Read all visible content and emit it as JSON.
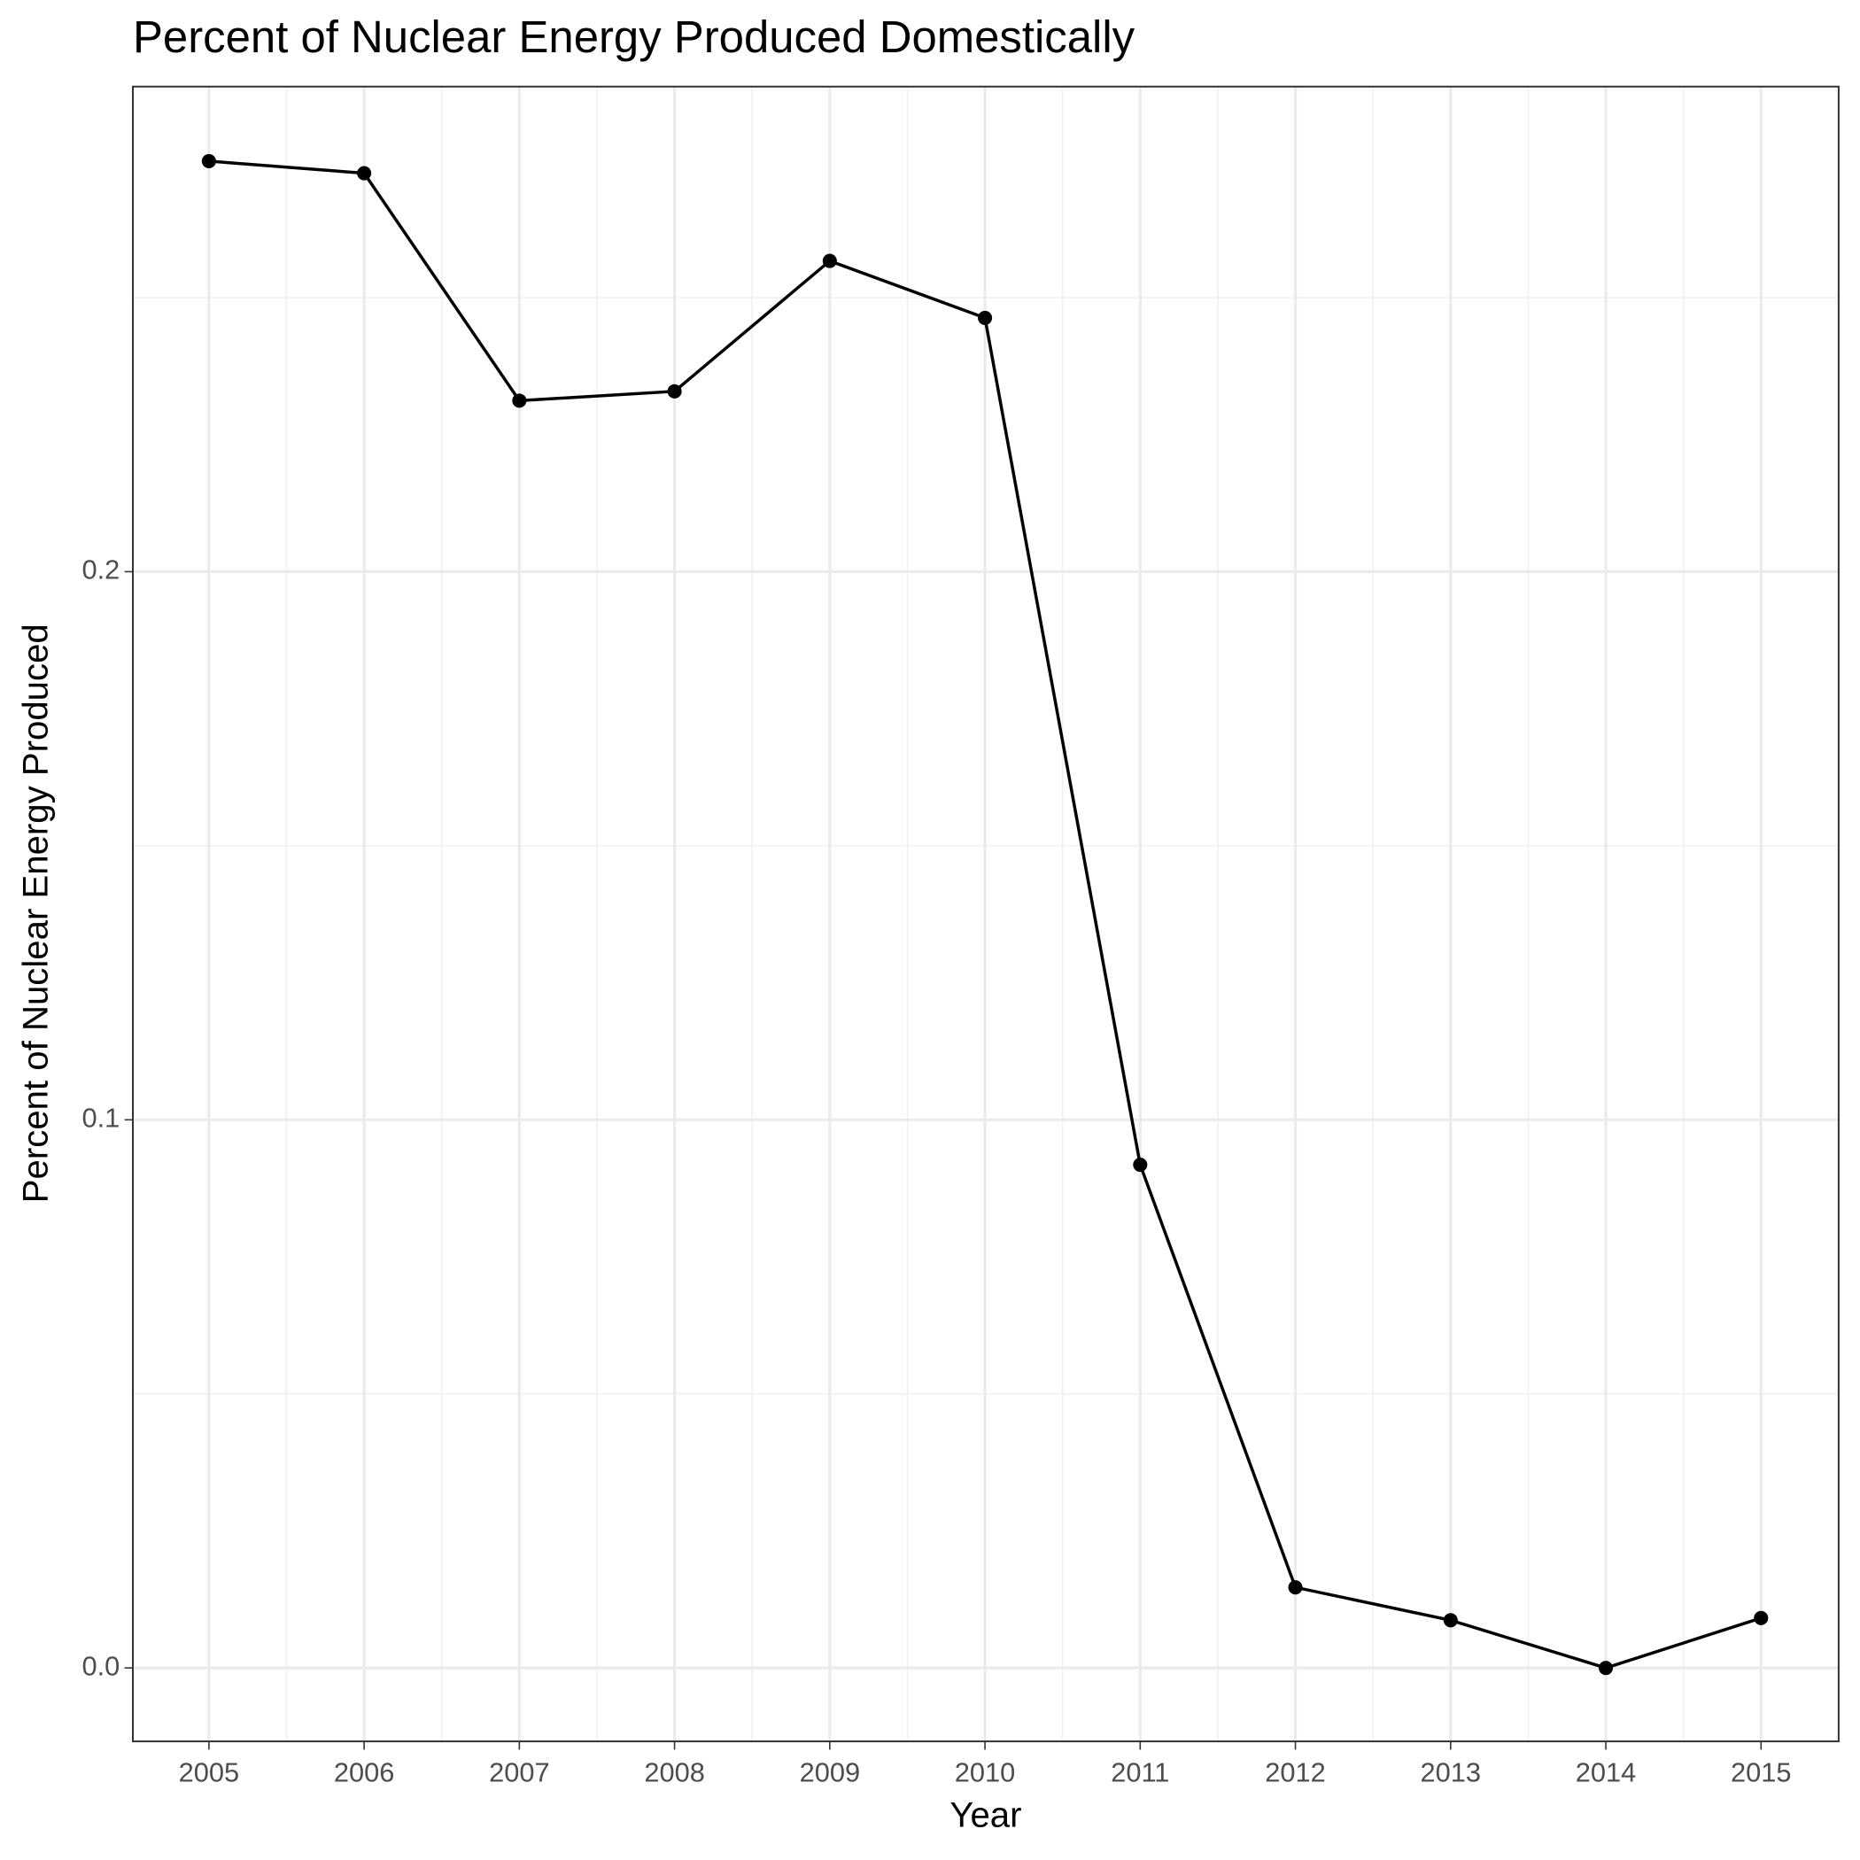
{
  "chart_data": {
    "type": "line",
    "title": "Percent of Nuclear Energy Produced Domestically",
    "x_label": "Year",
    "y_label": "Percent of Nuclear Energy Produced",
    "x": [
      2005,
      2006,
      2007,
      2008,
      2009,
      2010,
      2011,
      2012,
      2013,
      2014,
      2015
    ],
    "values": [
      0.2749,
      0.2727,
      0.2312,
      0.2329,
      0.2567,
      0.2463,
      0.0918,
      0.0147,
      0.0087,
      0,
      0.0091
    ],
    "color": "#000000",
    "xlim": [
      2004.51,
      2015.5
    ],
    "xticks": [
      2005,
      2006,
      2007,
      2008,
      2009,
      2010,
      2011,
      2012,
      2013,
      2014,
      2015
    ],
    "ylim": [
      -0.0134,
      0.2885
    ],
    "yticks": [
      {
        "value": 0,
        "label": "0.0"
      },
      0.1,
      0.2
    ],
    "grid": true
  }
}
